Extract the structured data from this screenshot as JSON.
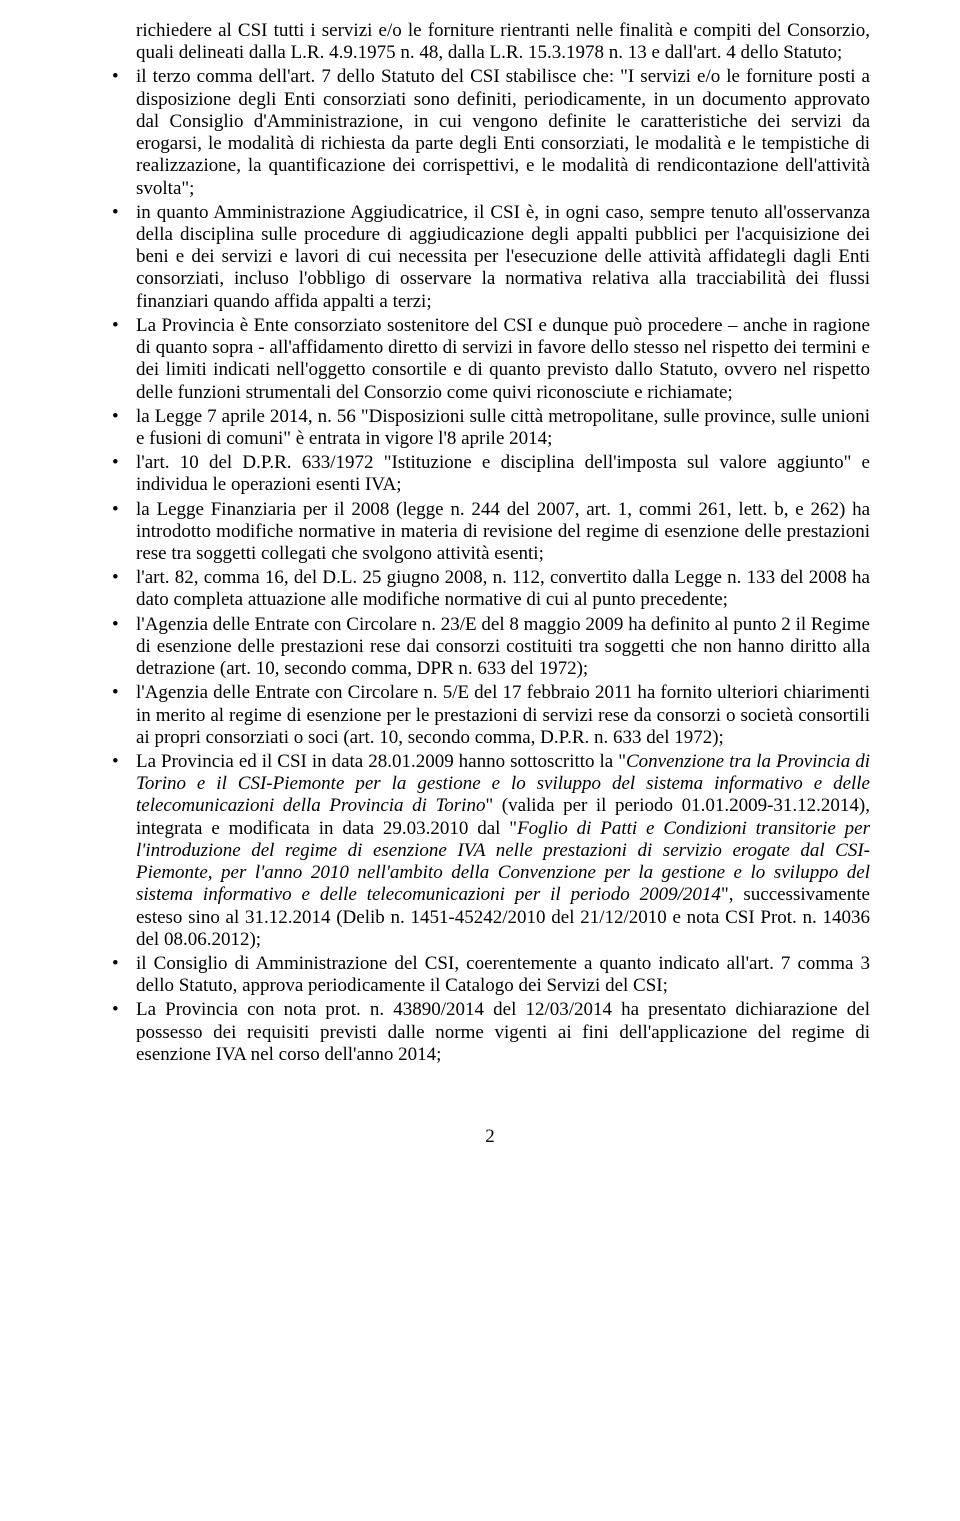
{
  "continuation": "richiedere al CSI tutti i servizi e/o le forniture rientranti nelle finalità e compiti del Consorzio, quali delineati dalla L.R. 4.9.1975 n. 48, dalla L.R. 15.3.1978 n. 13 e dall'art. 4 dello Statuto;",
  "bullets": [
    {
      "text": "il terzo comma dell'art. 7 dello Statuto del CSI stabilisce che: \"I servizi e/o le forniture posti a disposizione degli Enti consorziati sono definiti, periodicamente, in un documento approvato dal Consiglio d'Amministrazione, in cui vengono definite le caratteristiche dei servizi da erogarsi, le modalità di richiesta da parte degli Enti consorziati, le modalità e le tempistiche di realizzazione, la quantificazione dei corrispettivi, e le modalità di rendicontazione dell'attività svolta\";"
    },
    {
      "text": "in quanto Amministrazione Aggiudicatrice, il CSI è, in ogni caso, sempre tenuto all'osservanza della disciplina sulle procedure di aggiudicazione degli appalti pubblici per l'acquisizione dei beni e dei servizi e lavori di cui necessita per l'esecuzione delle attività affidategli dagli Enti consorziati, incluso l'obbligo di osservare la normativa relativa alla tracciabilità dei flussi finanziari quando affida appalti a terzi;"
    },
    {
      "text": "La Provincia è Ente consorziato sostenitore del CSI e dunque può procedere – anche in ragione di quanto sopra - all'affidamento diretto di servizi in favore dello stesso nel rispetto dei termini e dei limiti indicati nell'oggetto consortile e di quanto previsto dallo Statuto, ovvero nel rispetto delle funzioni strumentali del Consorzio come quivi riconosciute e richiamate;"
    },
    {
      "text": "la Legge 7 aprile 2014, n. 56 \"Disposizioni sulle città metropolitane, sulle province, sulle unioni e fusioni di comuni\" è entrata in vigore l'8 aprile 2014;"
    },
    {
      "text": "l'art. 10 del D.P.R. 633/1972 \"Istituzione e disciplina dell'imposta sul valore aggiunto\" e individua le operazioni esenti IVA;"
    },
    {
      "text": "la Legge Finanziaria per il 2008 (legge n. 244 del 2007, art. 1, commi 261, lett. b, e 262) ha introdotto modifiche normative in materia di revisione del regime di esenzione delle prestazioni rese tra soggetti collegati che svolgono attività esenti;"
    },
    {
      "text": "l'art. 82, comma 16, del D.L. 25 giugno 2008, n. 112, convertito dalla Legge n. 133 del 2008 ha dato completa attuazione alle modifiche normative di cui al punto precedente;"
    },
    {
      "text": "l'Agenzia delle Entrate con Circolare n. 23/E del 8 maggio 2009 ha definito al punto 2 il Regime di esenzione delle prestazioni rese dai consorzi costituiti tra soggetti che non hanno diritto alla detrazione (art. 10, secondo comma, DPR n. 633 del 1972);"
    },
    {
      "text": "l'Agenzia delle Entrate con Circolare n. 5/E del 17 febbraio 2011 ha fornito ulteriori chiarimenti in merito al regime di esenzione per le prestazioni di servizi rese da consorzi o società consortili ai propri consorziati o soci  (art. 10, secondo comma, D.P.R. n. 633 del 1972);"
    },
    {
      "pre": "La Provincia ed il CSI in data 28.01.2009 hanno sottoscritto la \"",
      "it1": "Convenzione tra la Provincia di Torino e il CSI-Piemonte per la gestione e lo sviluppo del sistema informativo e delle telecomunicazioni della Provincia di Torino",
      "mid1": "\" (valida per il periodo 01.01.2009-31.12.2014), integrata e modificata in data 29.03.2010 dal \"",
      "it2": "Foglio di Patti e Condizioni transitorie per l'introduzione del regime di esenzione IVA nelle prestazioni di servizio erogate dal CSI-Piemonte, per l'anno 2010 nell'ambito della Convenzione per la gestione e lo sviluppo del sistema informativo e delle telecomunicazioni per il periodo 2009/2014",
      "post": "\", successivamente esteso sino al 31.12.2014 (Delib n. 1451-45242/2010 del 21/12/2010 e nota CSI Prot. n. 14036 del 08.06.2012);"
    },
    {
      "text": "il Consiglio di Amministrazione del CSI, coerentemente a quanto indicato all'art. 7 comma 3 dello Statuto, approva periodicamente il Catalogo dei Servizi del CSI;"
    },
    {
      "text": "La Provincia con nota prot. n. 43890/2014 del 12/03/2014 ha presentato dichiarazione del possesso dei requisiti previsti dalle norme vigenti ai fini dell'applicazione del regime di esenzione IVA nel corso dell'anno 2014;"
    }
  ],
  "pageNumber": "2"
}
